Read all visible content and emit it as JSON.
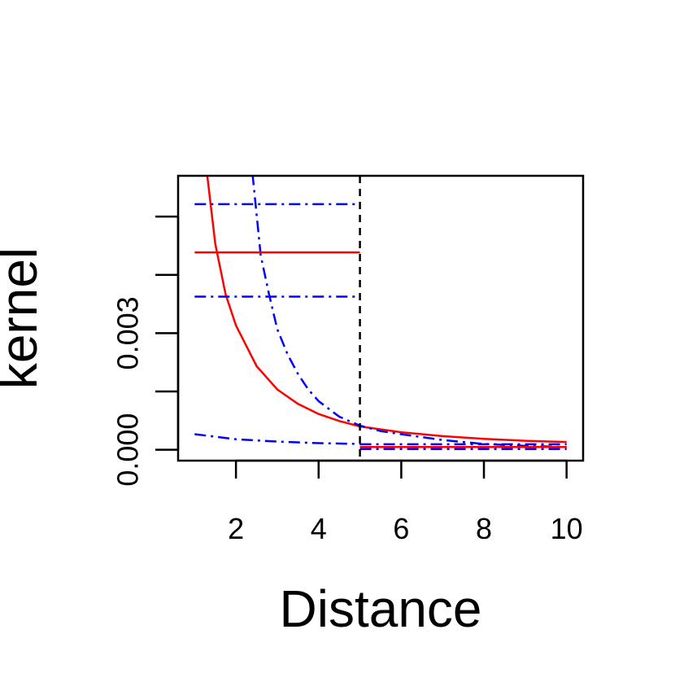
{
  "chart_data": {
    "type": "line",
    "title": "",
    "xlabel": "Distance",
    "ylabel": "kernel",
    "xlim": [
      0.6,
      10.4
    ],
    "ylim": [
      -0.00028,
      0.00705
    ],
    "x_ticks": [
      2,
      4,
      6,
      8,
      10
    ],
    "x_tick_labels": [
      "2",
      "4",
      "6",
      "8",
      "10"
    ],
    "y_ticks": [
      0.0,
      0.0015,
      0.003,
      0.0045,
      0.006
    ],
    "y_tick_labels": [
      "0.000",
      "",
      "0.003",
      "",
      ""
    ],
    "grid": false,
    "legend": "none",
    "vertical_line": {
      "x": 5,
      "style": "dashed",
      "color": "#000000"
    },
    "series": [
      {
        "color": "#ff0000",
        "style": "solid",
        "x": [
          1.3,
          1.5,
          1.75,
          2.0,
          2.5,
          3.0,
          3.5,
          4.0,
          4.5,
          5.0,
          6.0,
          7.0,
          8.0,
          9.0,
          10.0
        ],
        "y": [
          0.0071,
          0.0053,
          0.004,
          0.0032,
          0.00215,
          0.00155,
          0.00118,
          0.00092,
          0.00074,
          0.0006,
          0.00045,
          0.00035,
          0.00028,
          0.00023,
          0.0002
        ]
      },
      {
        "color": "#0000ff",
        "style": "dashdot",
        "x": [
          2.4,
          2.6,
          2.8,
          3.0,
          3.25,
          3.5,
          3.75,
          4.0,
          4.5,
          5.0,
          5.5,
          6.0,
          7.0,
          8.0,
          9.0,
          10.0
        ],
        "y": [
          0.0071,
          0.005,
          0.004,
          0.0031,
          0.00245,
          0.00195,
          0.00155,
          0.00125,
          0.00085,
          0.00062,
          0.00048,
          0.0004,
          0.00025,
          0.00015,
          0.0001,
          7e-05
        ]
      },
      {
        "color": "#0000ff",
        "style": "dashdot",
        "x": [
          1,
          2,
          3,
          4,
          5
        ],
        "y": [
          0.0004,
          0.00027,
          0.00021,
          0.00017,
          0.00015
        ]
      },
      {
        "color": "#ff0000",
        "style": "solid",
        "x": [
          1,
          5
        ],
        "y": [
          0.00508,
          0.00508
        ]
      },
      {
        "color": "#0000ff",
        "style": "dashdot",
        "x": [
          1,
          5
        ],
        "y": [
          0.00632,
          0.00632
        ]
      },
      {
        "color": "#0000ff",
        "style": "dashdot",
        "x": [
          1,
          5
        ],
        "y": [
          0.00394,
          0.00394
        ]
      },
      {
        "color": "#ff0000",
        "style": "solid",
        "x": [
          5,
          10
        ],
        "y": [
          7e-05,
          7e-05
        ]
      },
      {
        "color": "#0000ff",
        "style": "dashdot",
        "x": [
          5,
          10
        ],
        "y": [
          0.00014,
          0.00014
        ]
      },
      {
        "color": "#0000ff",
        "style": "dashdot",
        "x": [
          5,
          10
        ],
        "y": [
          2e-05,
          2e-05
        ]
      }
    ]
  }
}
